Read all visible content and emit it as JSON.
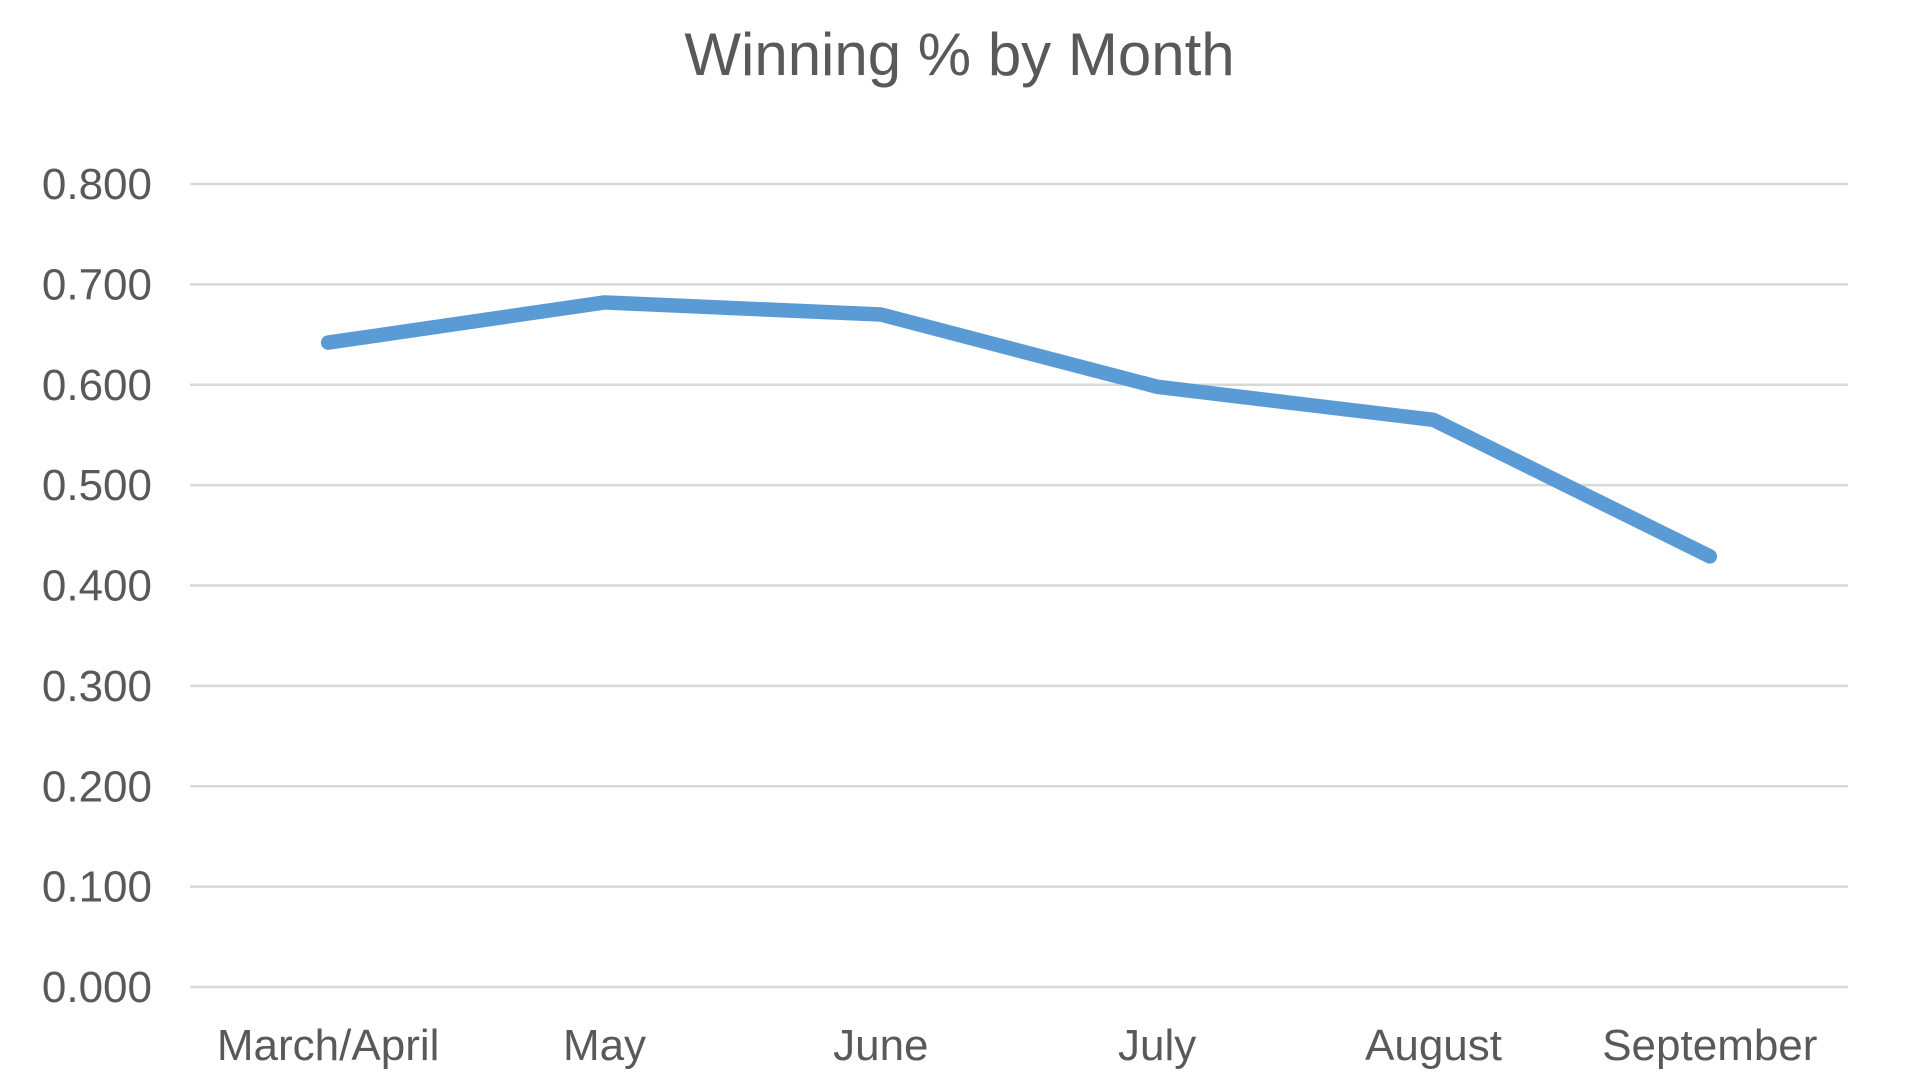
{
  "chart_data": {
    "type": "line",
    "title": "Winning % by Month",
    "categories": [
      "March/April",
      "May",
      "June",
      "July",
      "August",
      "September"
    ],
    "values": [
      0.642,
      0.682,
      0.67,
      0.598,
      0.565,
      0.429
    ],
    "xlabel": "",
    "ylabel": "",
    "ylim": [
      0.0,
      0.8
    ],
    "ytick_step": 0.1,
    "ytick_labels": [
      "0.000",
      "0.100",
      "0.200",
      "0.300",
      "0.400",
      "0.500",
      "0.600",
      "0.700",
      "0.800"
    ],
    "grid": "horizontal",
    "legend_position": "none",
    "colors": {
      "line": "#5B9BD5",
      "gridline": "#D9D9D9",
      "text": "#595959",
      "title_text": "#595959",
      "background": "#FFFFFF"
    }
  }
}
